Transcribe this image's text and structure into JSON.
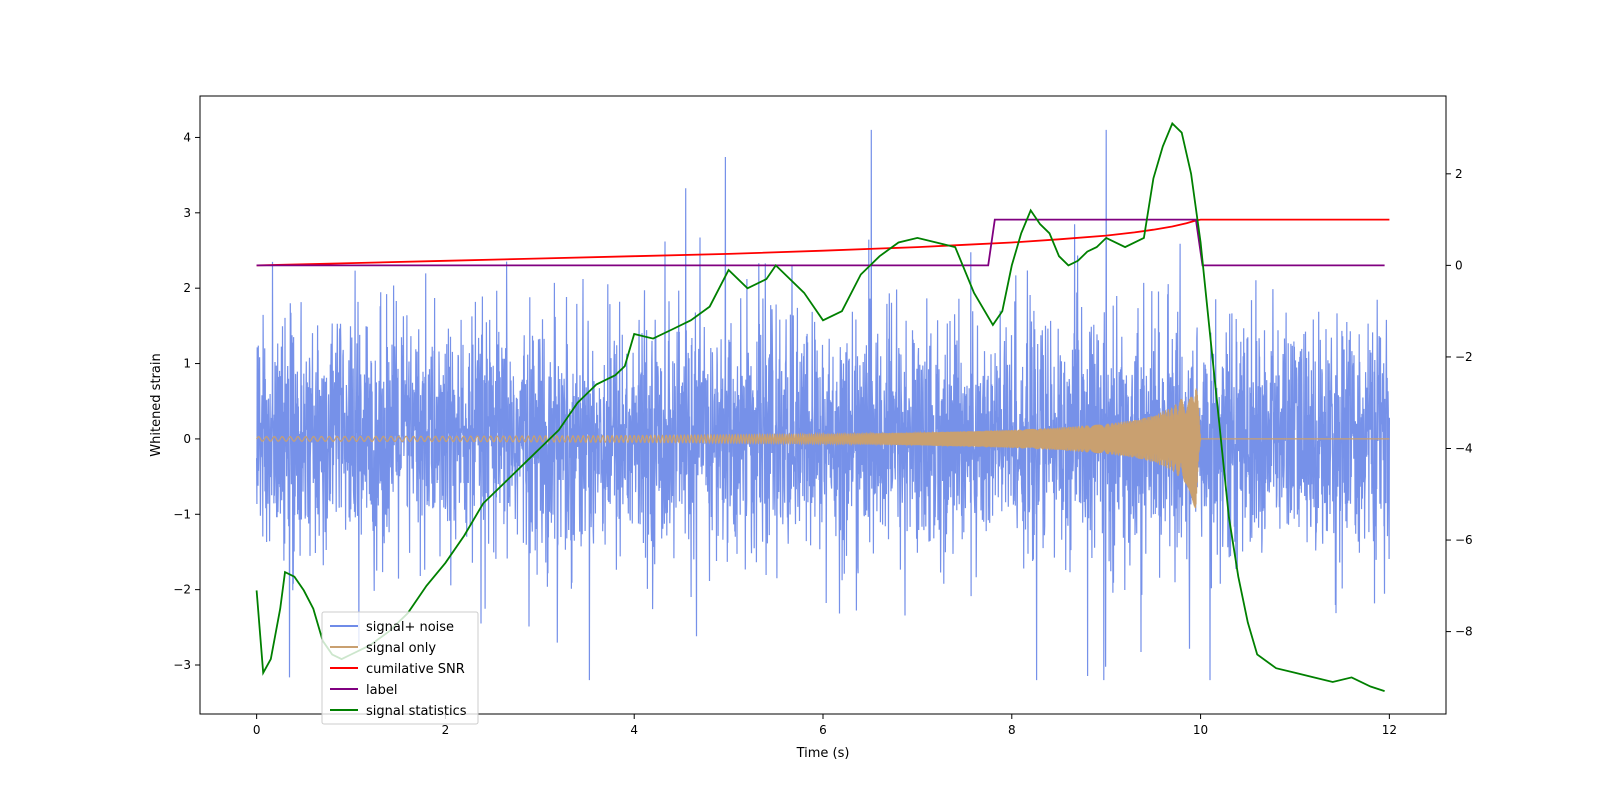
{
  "chart_data": {
    "type": "line",
    "title": "",
    "xlabel": "Time (s)",
    "ylabel_left": "Whitened strain",
    "ylabel_right": "",
    "xlim": [
      -0.6,
      12.6
    ],
    "ylim_left": [
      -3.65,
      4.55
    ],
    "ylim_right": [
      -9.8,
      3.7
    ],
    "x_ticks": [
      0,
      2,
      4,
      6,
      8,
      10,
      12
    ],
    "y_ticks_left": [
      -3,
      -2,
      -1,
      0,
      1,
      2,
      3,
      4
    ],
    "y_ticks_right": [
      -8,
      -6,
      -4,
      -2,
      0,
      2
    ],
    "legend_position": "lower-left",
    "colors": {
      "noise": "#6f8be8",
      "signal": "#c9a070",
      "snr": "#ff0000",
      "label": "#800080",
      "stat": "#008000"
    },
    "series": [
      {
        "name": "signal+ noise",
        "axis": "left",
        "color_key": "noise",
        "description": "whitened strain, noise amplitude ~1.5, occasional spikes to ~4.2 and -3.3",
        "x_range": [
          0,
          12
        ]
      },
      {
        "name": "signal only",
        "axis": "left",
        "color_key": "signal",
        "envelope": {
          "x": [
            0,
            2,
            4,
            6,
            7,
            8,
            8.5,
            9,
            9.3,
            9.5,
            9.7,
            9.85,
            9.95,
            10.0,
            12
          ],
          "amp": [
            0.03,
            0.035,
            0.045,
            0.065,
            0.085,
            0.12,
            0.15,
            0.2,
            0.25,
            0.31,
            0.42,
            0.6,
            0.95,
            0,
            0
          ]
        }
      },
      {
        "name": "cumilative SNR",
        "axis": "right",
        "color_key": "snr",
        "x": [
          0,
          1,
          2,
          3,
          4,
          5,
          6,
          7,
          7.5,
          8,
          8.5,
          9,
          9.3,
          9.5,
          9.7,
          9.85,
          9.95,
          10.0,
          12
        ],
        "y": [
          0,
          0.05,
          0.1,
          0.15,
          0.2,
          0.25,
          0.32,
          0.4,
          0.45,
          0.5,
          0.57,
          0.65,
          0.72,
          0.78,
          0.85,
          0.92,
          0.98,
          1.0,
          1.0
        ]
      },
      {
        "name": "label",
        "axis": "right",
        "color_key": "label",
        "x": [
          0,
          7.75,
          7.82,
          9.95,
          10.02,
          11.95
        ],
        "y": [
          0,
          0,
          1,
          1,
          0,
          0
        ]
      },
      {
        "name": "signal statistics",
        "axis": "right",
        "color_key": "stat",
        "x": [
          0,
          0.07,
          0.15,
          0.25,
          0.3,
          0.4,
          0.5,
          0.6,
          0.7,
          0.8,
          0.9,
          1.0,
          1.2,
          1.4,
          1.6,
          1.8,
          2.0,
          2.2,
          2.4,
          2.6,
          2.8,
          3.0,
          3.2,
          3.4,
          3.6,
          3.8,
          3.9,
          4.0,
          4.2,
          4.4,
          4.6,
          4.8,
          5.0,
          5.2,
          5.4,
          5.5,
          5.6,
          5.8,
          6.0,
          6.2,
          6.4,
          6.6,
          6.8,
          7.0,
          7.2,
          7.4,
          7.6,
          7.8,
          7.9,
          8.0,
          8.1,
          8.2,
          8.3,
          8.4,
          8.5,
          8.6,
          8.7,
          8.8,
          8.9,
          9.0,
          9.2,
          9.4,
          9.5,
          9.6,
          9.7,
          9.8,
          9.9,
          10.0,
          10.1,
          10.2,
          10.3,
          10.4,
          10.5,
          10.6,
          10.8,
          11.0,
          11.2,
          11.4,
          11.6,
          11.8,
          11.95
        ],
        "y": [
          -7.1,
          -8.9,
          -8.6,
          -7.5,
          -6.7,
          -6.8,
          -7.1,
          -7.5,
          -8.2,
          -8.5,
          -8.6,
          -8.5,
          -8.3,
          -8.0,
          -7.6,
          -7.0,
          -6.5,
          -5.9,
          -5.2,
          -4.8,
          -4.4,
          -4.0,
          -3.6,
          -3.0,
          -2.6,
          -2.4,
          -2.2,
          -1.5,
          -1.6,
          -1.4,
          -1.2,
          -0.9,
          -0.1,
          -0.5,
          -0.3,
          0.0,
          -0.2,
          -0.6,
          -1.2,
          -1.0,
          -0.2,
          0.2,
          0.5,
          0.6,
          0.5,
          0.4,
          -0.6,
          -1.3,
          -1.0,
          0.0,
          0.7,
          1.2,
          0.9,
          0.7,
          0.2,
          0.0,
          0.1,
          0.3,
          0.4,
          0.6,
          0.4,
          0.6,
          1.9,
          2.6,
          3.1,
          2.9,
          2.0,
          0.5,
          -1.5,
          -3.5,
          -5.5,
          -6.8,
          -7.8,
          -8.5,
          -8.8,
          -8.9,
          -9.0,
          -9.1,
          -9.0,
          -9.2,
          -9.3
        ]
      }
    ]
  }
}
